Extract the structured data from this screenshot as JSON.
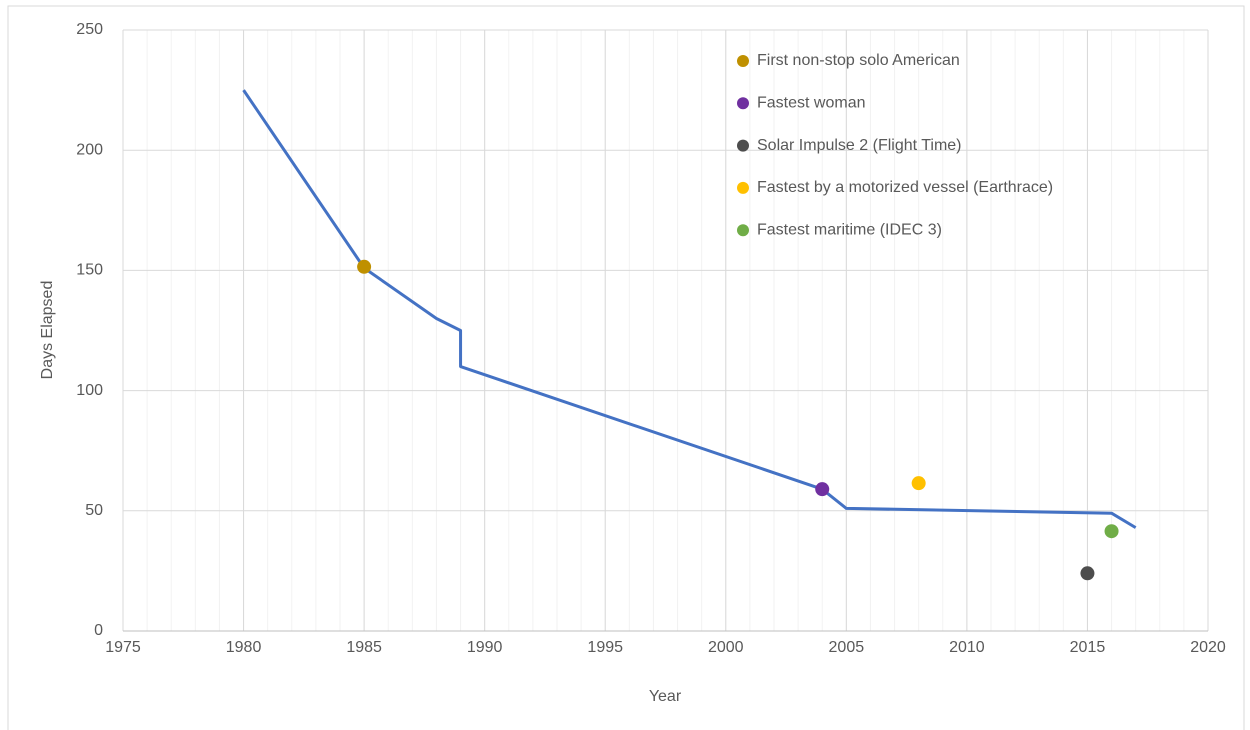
{
  "chart_data": {
    "type": "line",
    "xlabel": "Year",
    "ylabel": "Days Elapsed",
    "xlim": [
      1975,
      2020
    ],
    "xticks": [
      1975,
      1980,
      1985,
      1990,
      1995,
      2000,
      2005,
      2010,
      2015,
      2020
    ],
    "x_minor_step": 1,
    "ylim": [
      0,
      250
    ],
    "yticks": [
      0,
      50,
      100,
      150,
      200,
      250
    ],
    "grid": true,
    "legend": "upper right",
    "series": [
      {
        "type": "line",
        "color": "#4472c4",
        "x": [
          1980,
          1985,
          1988,
          1989,
          1989,
          2004,
          2005,
          2016,
          2017
        ],
        "values": [
          225,
          151,
          130,
          125,
          110,
          59,
          51,
          49,
          43
        ]
      },
      {
        "type": "scatter",
        "name": "First non-stop solo American",
        "color": "#bf9000",
        "x": [
          1985
        ],
        "values": [
          151.5
        ]
      },
      {
        "type": "scatter",
        "name": "Fastest woman",
        "color": "#7030a0",
        "x": [
          2004
        ],
        "values": [
          59
        ]
      },
      {
        "type": "scatter",
        "name": "Solar Impulse 2 (Flight Time)",
        "color": "#4d4d4d",
        "x": [
          2015
        ],
        "values": [
          24
        ]
      },
      {
        "type": "scatter",
        "name": "Fastest by a motorized vessel (Earthrace)",
        "color": "#ffc000",
        "x": [
          2008
        ],
        "values": [
          61.5
        ]
      },
      {
        "type": "scatter",
        "name": "Fastest maritime (IDEC 3)",
        "color": "#70ad47",
        "x": [
          2016
        ],
        "values": [
          41.5
        ]
      }
    ]
  }
}
